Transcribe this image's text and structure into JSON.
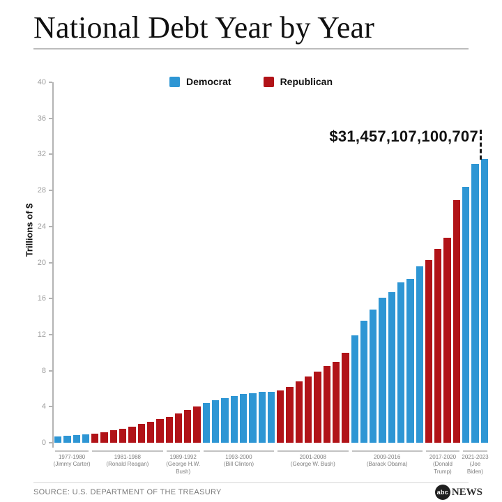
{
  "page": {
    "title": "National Debt Year by Year"
  },
  "legend": {
    "items": [
      {
        "label": "Democrat",
        "color": "#2E96D4"
      },
      {
        "label": "Republican",
        "color": "#B11318"
      }
    ]
  },
  "annotation": {
    "text": "$31,457,107,100,707"
  },
  "y_axis": {
    "label": "Trillions of $",
    "ticks": [
      0,
      4,
      8,
      12,
      16,
      20,
      24,
      28,
      32,
      36,
      40
    ],
    "max": 40
  },
  "footer": {
    "source": "SOURCE: U.S. DEPARTMENT OF THE TREASURY",
    "logo_abc": "abc",
    "logo_news": "NEWS"
  },
  "chart_data": {
    "type": "bar",
    "title": "National Debt Year by Year",
    "ylabel": "Trillions of $",
    "ylim": [
      0,
      40
    ],
    "yticks": [
      0,
      4,
      8,
      12,
      16,
      20,
      24,
      28,
      32,
      36,
      40
    ],
    "grid": false,
    "legend_position": "top-center",
    "legend": [
      "Democrat",
      "Republican"
    ],
    "colors": {
      "Democrat": "#2E96D4",
      "Republican": "#B11318"
    },
    "annotation": {
      "text": "$31,457,107,100,707",
      "points_to_year": 2023
    },
    "groups": [
      {
        "years": "1977-1980",
        "president_lines": [
          "(Jimmy Carter)"
        ],
        "party": "Democrat",
        "start_year": 1977,
        "values": [
          0.7,
          0.77,
          0.83,
          0.91
        ]
      },
      {
        "years": "1981-1988",
        "president_lines": [
          "(Ronald Reagan)"
        ],
        "party": "Republican",
        "start_year": 1981,
        "values": [
          1.0,
          1.14,
          1.38,
          1.57,
          1.82,
          2.13,
          2.35,
          2.6
        ]
      },
      {
        "years": "1989-1992",
        "president_lines": [
          "(George H.W.",
          "Bush)"
        ],
        "party": "Republican",
        "start_year": 1989,
        "values": [
          2.86,
          3.23,
          3.67,
          4.06
        ]
      },
      {
        "years": "1993-2000",
        "president_lines": [
          "(Bill Clinton)"
        ],
        "party": "Democrat",
        "start_year": 1993,
        "values": [
          4.41,
          4.69,
          4.97,
          5.22,
          5.41,
          5.53,
          5.66,
          5.67
        ]
      },
      {
        "years": "2001-2008",
        "president_lines": [
          "(George W. Bush)"
        ],
        "party": "Republican",
        "start_year": 2001,
        "values": [
          5.81,
          6.23,
          6.78,
          7.38,
          7.93,
          8.51,
          9.01,
          10.02
        ]
      },
      {
        "years": "2009-2016",
        "president_lines": [
          "(Barack Obama)"
        ],
        "party": "Democrat",
        "start_year": 2009,
        "values": [
          11.91,
          13.56,
          14.79,
          16.07,
          16.74,
          17.82,
          18.15,
          19.57
        ]
      },
      {
        "years": "2017-2020",
        "president_lines": [
          "(Donald",
          "Trump)"
        ],
        "party": "Republican",
        "start_year": 2017,
        "values": [
          20.24,
          21.52,
          22.72,
          26.95
        ]
      },
      {
        "years": "2021-2023",
        "president_lines": [
          "(Joe",
          "Biden)"
        ],
        "party": "Democrat",
        "start_year": 2021,
        "values": [
          28.43,
          30.93,
          31.46
        ]
      }
    ]
  }
}
